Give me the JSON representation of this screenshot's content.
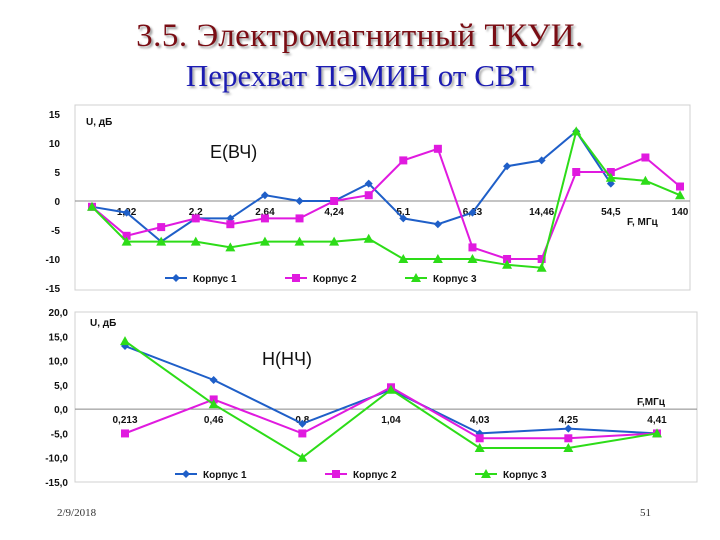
{
  "slide": {
    "title": "3.5. Электромагнитный ТКУИ.",
    "subtitle": "Перехват ПЭМИН от СВТ",
    "date": "2/9/2018",
    "page_number": "51"
  },
  "colors": {
    "title": "#7a0d14",
    "subtitle": "#1c1cb2",
    "series": [
      "#1f5fc8",
      "#e01adf",
      "#2ddc18"
    ]
  },
  "chart_data": [
    {
      "type": "line",
      "label": "E(ВЧ)",
      "ylabel": "U, дБ",
      "xlabel": "F, МГц",
      "ylim": [
        -15,
        15
      ],
      "yticks": [
        "15",
        "10",
        "5",
        "0",
        "-5",
        "-10",
        "-15"
      ],
      "x_tick_labels": [
        "1,02",
        "2,2",
        "2,64",
        "4,24",
        "5,1",
        "6,23",
        "14,46",
        "54,5",
        "140"
      ],
      "x_tick_positions": [
        1,
        3,
        5,
        7,
        9,
        11,
        13,
        15,
        17
      ],
      "x_count": 18,
      "grid": false,
      "legend_position": "bottom",
      "series": [
        {
          "name": "Корпус 1",
          "marker": "diamond",
          "values": [
            -1,
            -2,
            -7,
            -3,
            -3,
            1,
            0,
            0,
            3,
            -3,
            -4,
            -2,
            6,
            7,
            12,
            3,
            null,
            null
          ]
        },
        {
          "name": "Корпус 2",
          "marker": "square",
          "values": [
            -1,
            -6,
            -4.5,
            -3,
            -4,
            -3,
            -3,
            0,
            1,
            7,
            9,
            -8,
            -10,
            -10,
            5,
            5,
            7.5,
            2.5
          ]
        },
        {
          "name": "Корпус 3",
          "marker": "triangle",
          "values": [
            -1,
            -7,
            -7,
            -7,
            -8,
            -7,
            -7,
            -7,
            -6.5,
            -10,
            -10,
            -10,
            -11,
            -11.5,
            12,
            4,
            3.5,
            1
          ]
        }
      ]
    },
    {
      "type": "line",
      "label": "H(НЧ)",
      "ylabel": "U, дБ",
      "xlabel": "F,МГц",
      "ylim": [
        -15,
        20
      ],
      "yticks": [
        "20,0",
        "15,0",
        "10,0",
        "5,0",
        "0,0",
        "-5,0",
        "-10,0",
        "-15,0"
      ],
      "x_tick_labels": [
        "0,213",
        "0,46",
        "0,8",
        "1,04",
        "4,03",
        "4,25",
        "4,41"
      ],
      "x_tick_positions": [
        0,
        1,
        2,
        3,
        4,
        5,
        6
      ],
      "x_count": 7,
      "grid": false,
      "legend_position": "bottom",
      "series": [
        {
          "name": "Корпус 1",
          "marker": "diamond",
          "values": [
            13,
            6,
            -3,
            4,
            -5,
            -4,
            -5
          ]
        },
        {
          "name": "Корпус 2",
          "marker": "square",
          "values": [
            -5,
            2,
            -5,
            4.5,
            -6,
            -6,
            -5
          ]
        },
        {
          "name": "Корпус 3",
          "marker": "triangle",
          "values": [
            14,
            1,
            -10,
            4,
            -8,
            -8,
            -5
          ]
        }
      ]
    }
  ]
}
